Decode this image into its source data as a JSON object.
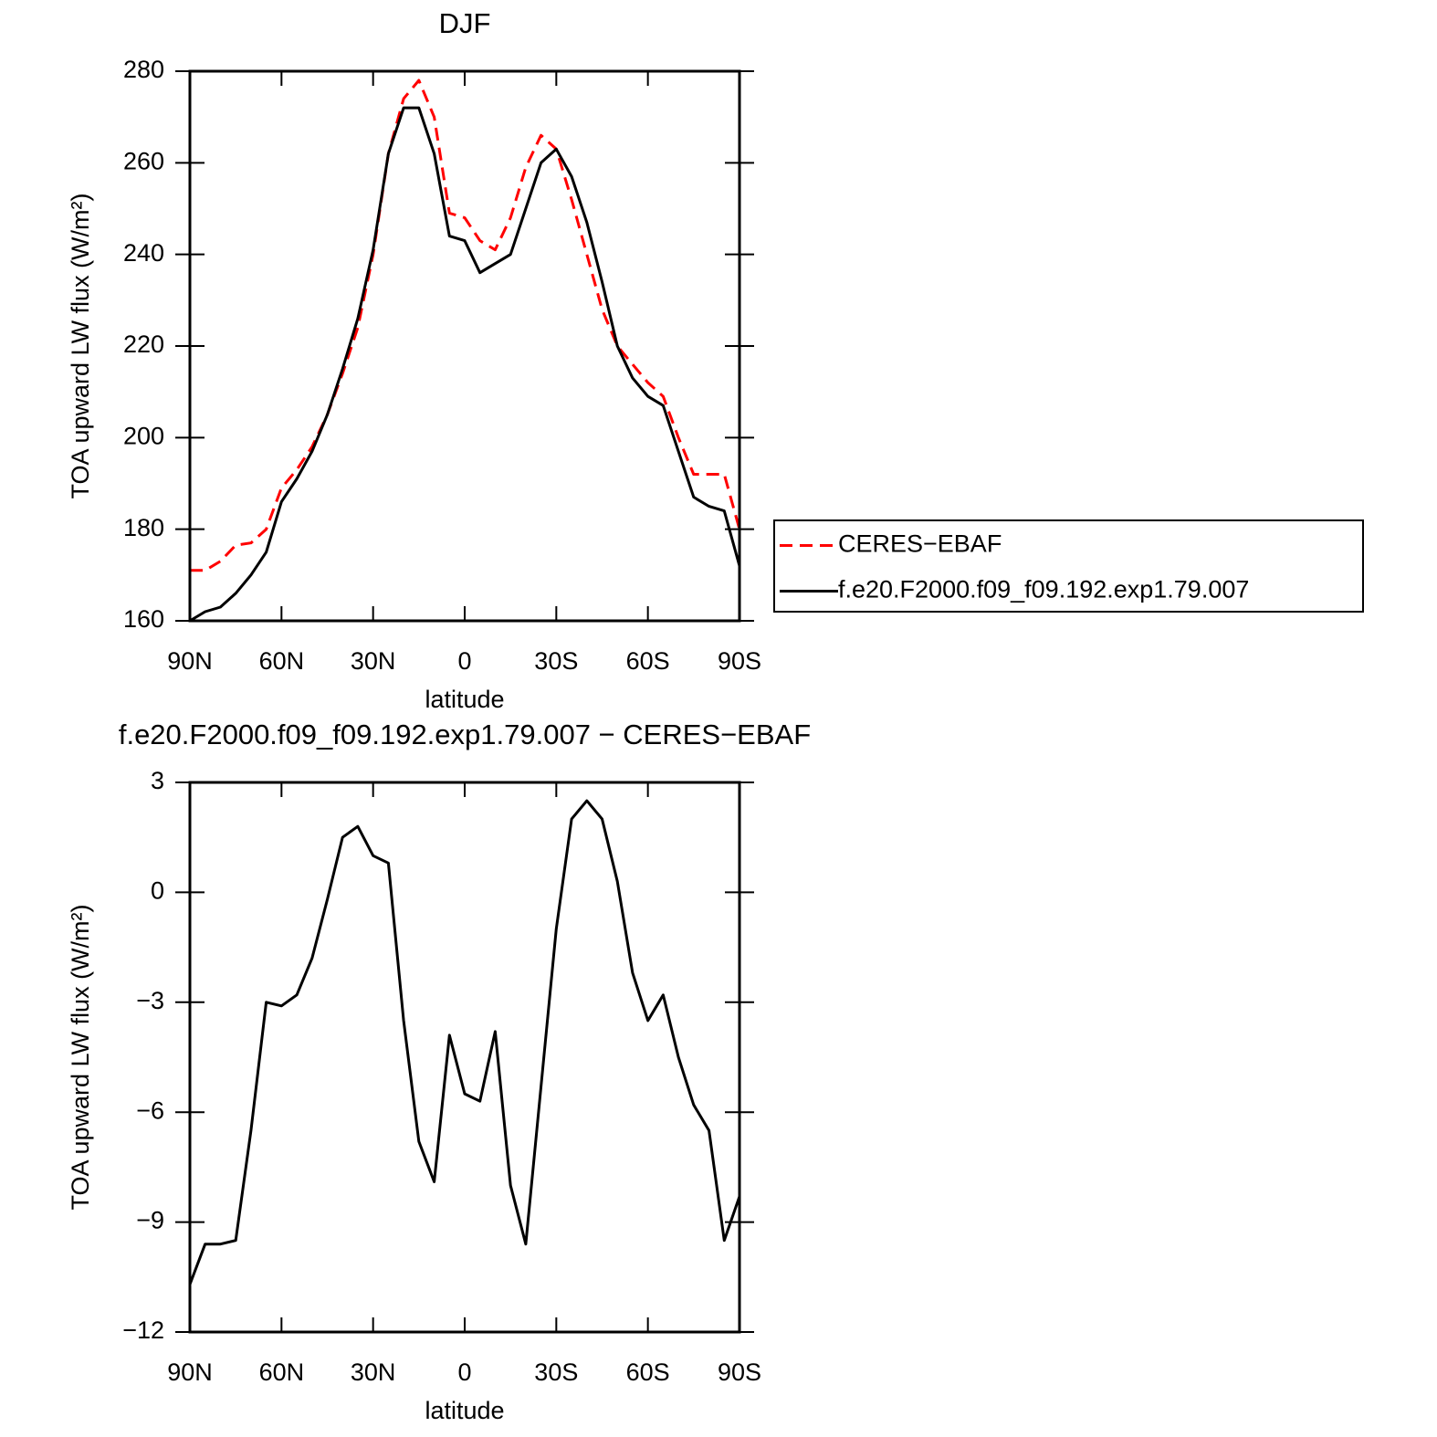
{
  "chart_data": [
    {
      "type": "line",
      "title": "DJF",
      "xlabel": "latitude",
      "ylabel": "TOA upward LW flux (W/m²)",
      "x": [
        90,
        85,
        80,
        75,
        70,
        65,
        60,
        55,
        50,
        45,
        40,
        35,
        30,
        25,
        20,
        15,
        10,
        5,
        0,
        -5,
        -10,
        -15,
        -20,
        -25,
        -30,
        -35,
        -40,
        -45,
        -50,
        -55,
        -60,
        -65,
        -70,
        -75,
        -80,
        -85,
        -90
      ],
      "xlim": [
        90,
        -90
      ],
      "xticks": [
        {
          "value": 90,
          "label": "90N"
        },
        {
          "value": 60,
          "label": "60N"
        },
        {
          "value": 30,
          "label": "30N"
        },
        0,
        {
          "value": -30,
          "label": "30S"
        },
        {
          "value": -60,
          "label": "60S"
        },
        {
          "value": -90,
          "label": "90S"
        }
      ],
      "ylim": [
        160,
        280
      ],
      "yticks": [
        160,
        180,
        200,
        220,
        240,
        260,
        280
      ],
      "legend": "outside right",
      "series": [
        {
          "name": "CERES−EBAF",
          "color": "#ff0000",
          "linestyle": "dashed",
          "values": [
            171,
            171,
            173,
            176.5,
            177,
            180,
            189,
            193,
            198,
            205,
            214,
            224,
            240,
            262,
            274,
            278,
            270,
            249,
            248,
            243,
            241,
            248,
            259,
            266,
            263,
            252,
            240,
            228,
            220,
            216,
            212,
            209,
            200,
            192,
            192,
            192,
            180
          ]
        },
        {
          "name": "f.e20.F2000.f09_f09.192.exp1.79.007",
          "color": "#000000",
          "linestyle": "solid",
          "values": [
            160,
            162,
            163,
            166,
            170,
            175,
            186,
            191,
            197,
            205,
            215,
            226,
            241,
            262,
            272,
            272,
            262,
            244,
            243,
            236,
            238,
            240,
            250,
            260,
            263,
            257,
            247,
            234,
            220,
            213,
            209,
            207,
            197,
            187,
            185,
            184,
            172
          ]
        }
      ]
    },
    {
      "type": "line",
      "title": "f.e20.F2000.f09_f09.192.exp1.79.007 − CERES−EBAF",
      "xlabel": "latitude",
      "ylabel": "TOA upward LW flux (W/m²)",
      "x": [
        90,
        85,
        80,
        75,
        70,
        65,
        60,
        55,
        50,
        45,
        40,
        35,
        30,
        25,
        20,
        15,
        10,
        5,
        0,
        -5,
        -10,
        -15,
        -20,
        -25,
        -30,
        -35,
        -40,
        -45,
        -50,
        -55,
        -60,
        -65,
        -70,
        -75,
        -80,
        -85,
        -90
      ],
      "xlim": [
        90,
        -90
      ],
      "xticks": [
        {
          "value": 90,
          "label": "90N"
        },
        {
          "value": 60,
          "label": "60N"
        },
        {
          "value": 30,
          "label": "30N"
        },
        0,
        {
          "value": -30,
          "label": "30S"
        },
        {
          "value": -60,
          "label": "60S"
        },
        {
          "value": -90,
          "label": "90S"
        }
      ],
      "ylim": [
        -12,
        3
      ],
      "yticks": [
        {
          "value": -12,
          "label": "−12"
        },
        {
          "value": -9,
          "label": "−9"
        },
        {
          "value": -6,
          "label": "−6"
        },
        {
          "value": -3,
          "label": "−3"
        },
        0,
        3
      ],
      "series": [
        {
          "color": "#000000",
          "linestyle": "solid",
          "values": [
            -10.7,
            -9.6,
            -9.6,
            -9.5,
            -6.5,
            -3,
            -3.1,
            -2.8,
            -1.8,
            -0.2,
            1.5,
            1.8,
            1.0,
            0.8,
            -3.5,
            -6.8,
            -7.9,
            -3.9,
            -5.5,
            -5.7,
            -3.8,
            -8,
            -9.6,
            -5.3,
            -1,
            2,
            2.5,
            2,
            0.3,
            -2.2,
            -3.5,
            -2.8,
            -4.5,
            -5.8,
            -6.5,
            -9.5,
            -8.3
          ]
        }
      ]
    }
  ]
}
